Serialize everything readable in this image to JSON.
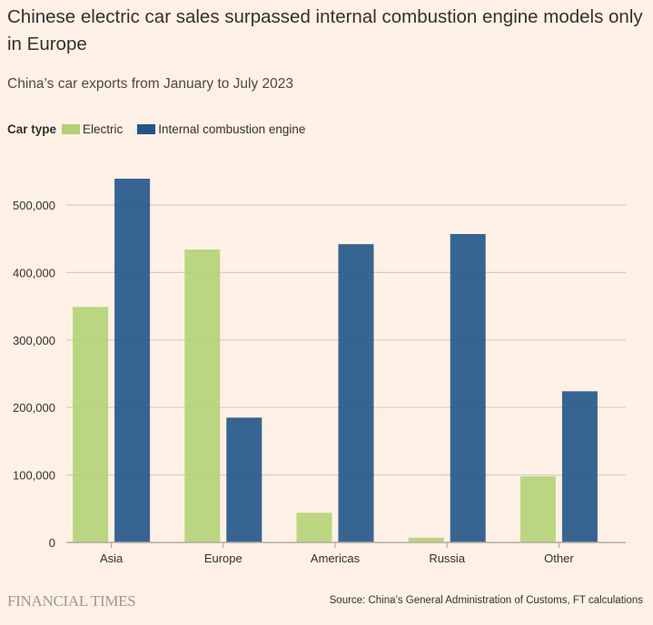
{
  "title": "Chinese electric car sales surpassed internal combustion engine models only in Europe",
  "subtitle": "China’s car exports from January to July 2023",
  "legend": {
    "title": "Car type",
    "items": [
      {
        "label": "Electric",
        "color": "#b1d173"
      },
      {
        "label": "Internal combustion engine",
        "color": "#215588"
      }
    ]
  },
  "footer": {
    "brand": "FINANCIAL TIMES",
    "source": "Source: China’s General Administration of Customs, FT calculations"
  },
  "chart_data": {
    "type": "bar",
    "title": "Chinese electric car sales surpassed internal combustion engine models only in Europe",
    "subtitle": "China’s car exports from January to July 2023",
    "xlabel": "",
    "ylabel": "",
    "categories": [
      "Asia",
      "Europe",
      "Americas",
      "Russia",
      "Other"
    ],
    "series": [
      {
        "name": "Electric",
        "color": "#b1d173",
        "values": [
          349000,
          434000,
          44000,
          7000,
          98000
        ]
      },
      {
        "name": "Internal combustion engine",
        "color": "#215588",
        "values": [
          539000,
          185000,
          442000,
          457000,
          224000
        ]
      }
    ],
    "ylim": [
      0,
      560000
    ],
    "yticks": [
      0,
      100000,
      200000,
      300000,
      400000,
      500000
    ],
    "ytick_labels": [
      "0",
      "100,000",
      "200,000",
      "300,000",
      "400,000",
      "500,000"
    ],
    "grid": true,
    "legend_position": "top-left"
  }
}
